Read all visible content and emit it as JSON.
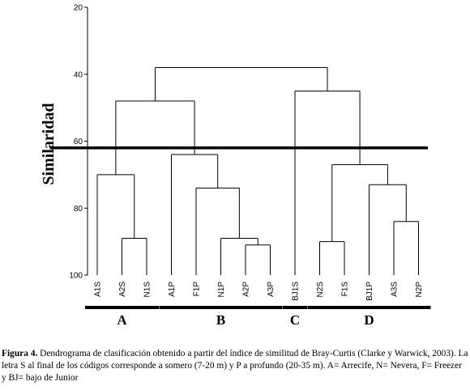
{
  "chart_data": {
    "type": "dendrogram",
    "ylabel": "Similaridad",
    "ylim": [
      20,
      100
    ],
    "yticks": [
      20,
      40,
      60,
      80,
      100
    ],
    "cut_level": 62,
    "leaves": [
      "A1S",
      "A2S",
      "N1S",
      "A1P",
      "F1P",
      "N1P",
      "A2P",
      "A3P",
      "BJ1S",
      "N2S",
      "F1S",
      "BJ1P",
      "A3S",
      "N2P"
    ],
    "merges": [
      {
        "a": "A2S",
        "b": "N1S",
        "similarity": 89
      },
      {
        "a": "A1S",
        "b": "A2S+N1S",
        "similarity": 70
      },
      {
        "a": "A2P",
        "b": "A3P",
        "similarity": 91
      },
      {
        "a": "N1P",
        "b": "A2P+A3P",
        "similarity": 89
      },
      {
        "a": "F1P",
        "b": "N1P+A2P+A3P",
        "similarity": 74
      },
      {
        "a": "A1P",
        "b": "F1P+N1P+A2P+A3P",
        "similarity": 64
      },
      {
        "a": "A",
        "b": "B",
        "similarity": 48
      },
      {
        "a": "N2S",
        "b": "F1S",
        "similarity": 90
      },
      {
        "a": "A3S",
        "b": "N2P",
        "similarity": 84
      },
      {
        "a": "BJ1P",
        "b": "A3S+N2P",
        "similarity": 73
      },
      {
        "a": "N2S+F1S",
        "b": "BJ1P+A3S+N2P",
        "similarity": 67
      },
      {
        "a": "BJ1S",
        "b": "D",
        "similarity": 45
      },
      {
        "a": "A+B",
        "b": "C+D",
        "similarity": 38
      }
    ],
    "groups": [
      {
        "label": "A",
        "from": 0,
        "to": 2
      },
      {
        "label": "B",
        "from": 3,
        "to": 7
      },
      {
        "label": "C",
        "from": 8,
        "to": 8
      },
      {
        "label": "D",
        "from": 9,
        "to": 13
      }
    ]
  },
  "caption": {
    "title": "Figura 4.",
    "text": " Dendrograma de clasificación obtenido a partir del índice de similitud de Bray-Curtis (Clarke y Warwick, 2003). La letra S al final de los códigos corresponde a somero (7-20 m) y P a profundo (20-35 m). A= Arrecife, N= Nevera, F= Freezer y BJ= bajo de Junior"
  }
}
